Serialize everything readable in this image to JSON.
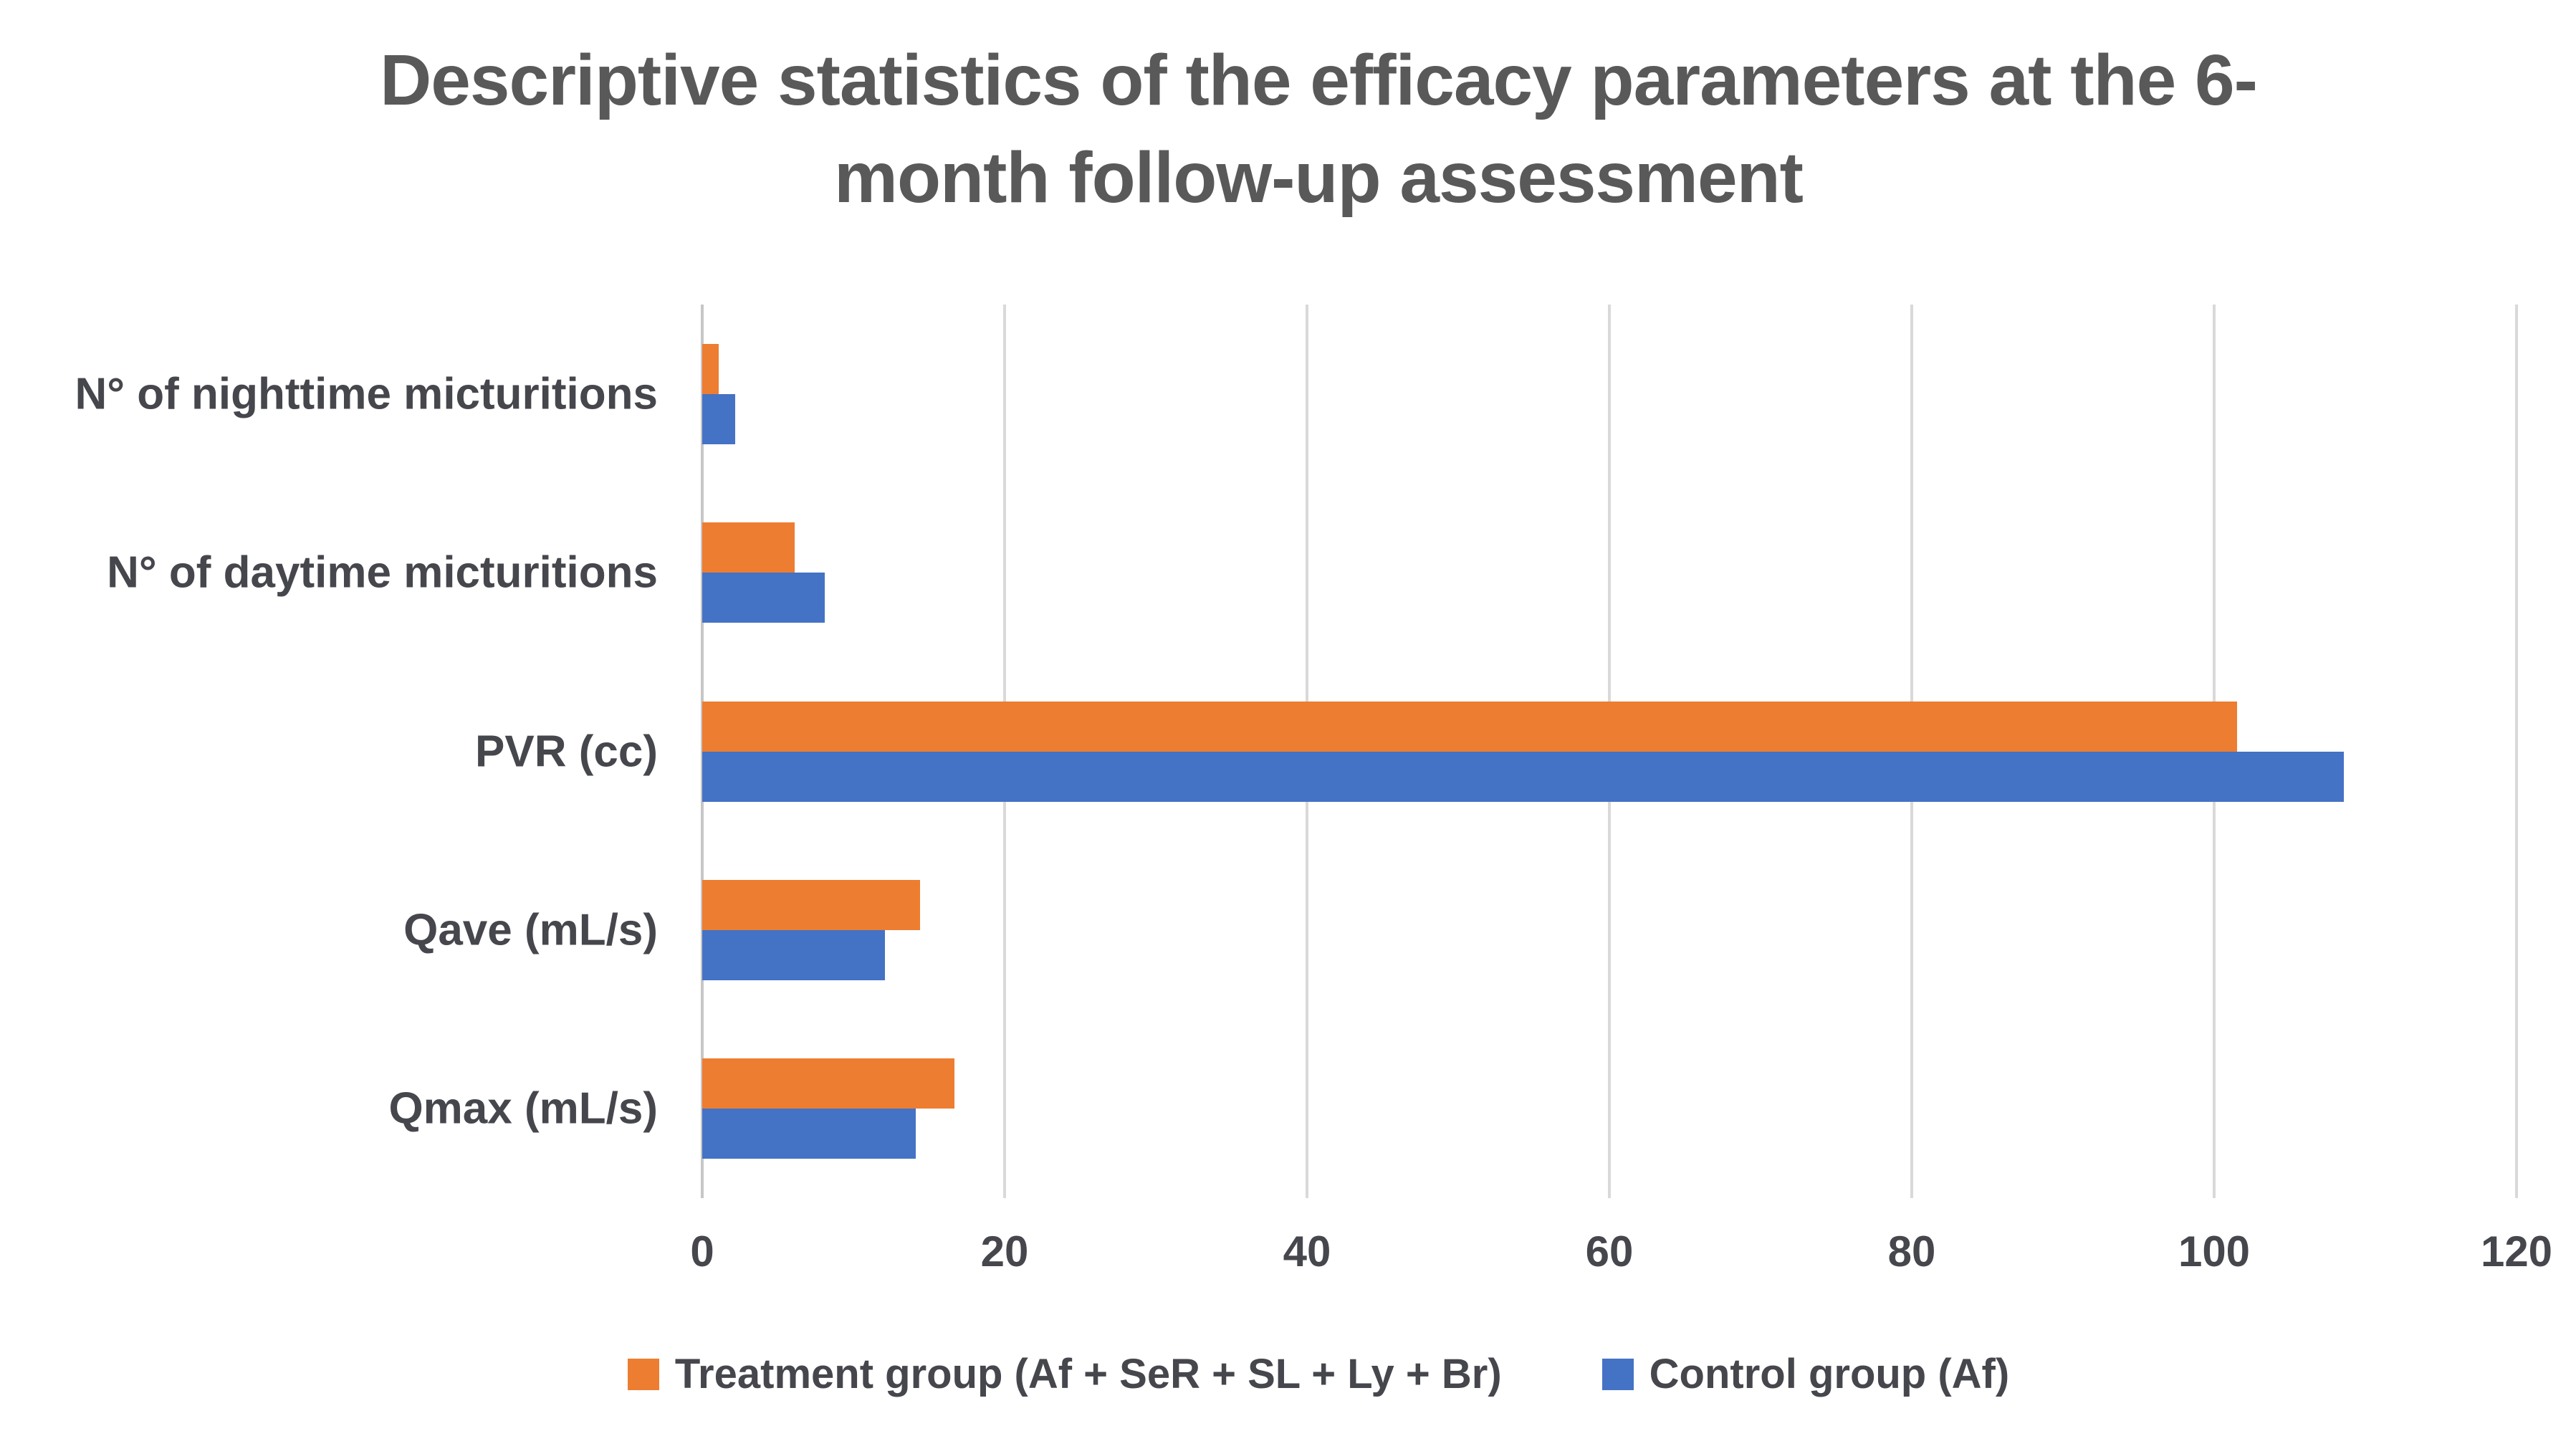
{
  "title": {
    "line1": "Descriptive statistics of the efficacy parameters at the 6-",
    "line2": "month follow-up assessment"
  },
  "legend": {
    "treatment_label": "Treatment group (Af + SeR + SL + Ly + Br)",
    "control_label": "Control group (Af)"
  },
  "colors": {
    "treatment": "#ED7D31",
    "control": "#4472C4",
    "title_text": "#595959",
    "axis_text": "#45474D",
    "gridline": "#D9D9D9",
    "axis_line": "#C6C6C6",
    "background": "#FFFFFF"
  },
  "chart_data": {
    "type": "bar",
    "orientation": "horizontal",
    "title": "Descriptive statistics of the efficacy parameters at the 6-month follow-up assessment",
    "categories_order": "top-to-bottom",
    "categories": [
      "N° of nighttime micturitions",
      "N° of daytime micturitions",
      "PVR (cc)",
      "Qave (mL/s)",
      "Qmax (mL/s)"
    ],
    "series": [
      {
        "name": "Treatment group (Af + SeR + SL + Ly + Br)",
        "color": "#ED7D31",
        "values": [
          1.1,
          6.1,
          101.5,
          14.4,
          16.7
        ]
      },
      {
        "name": "Control group (Af)",
        "color": "#4472C4",
        "values": [
          2.2,
          8.1,
          108.6,
          12.1,
          14.1
        ]
      }
    ],
    "xlabel": "",
    "ylabel": "",
    "xlim": [
      0,
      120
    ],
    "xticks": [
      0,
      20,
      40,
      60,
      80,
      100,
      120
    ],
    "grid": "vertical",
    "legend_position": "bottom"
  }
}
